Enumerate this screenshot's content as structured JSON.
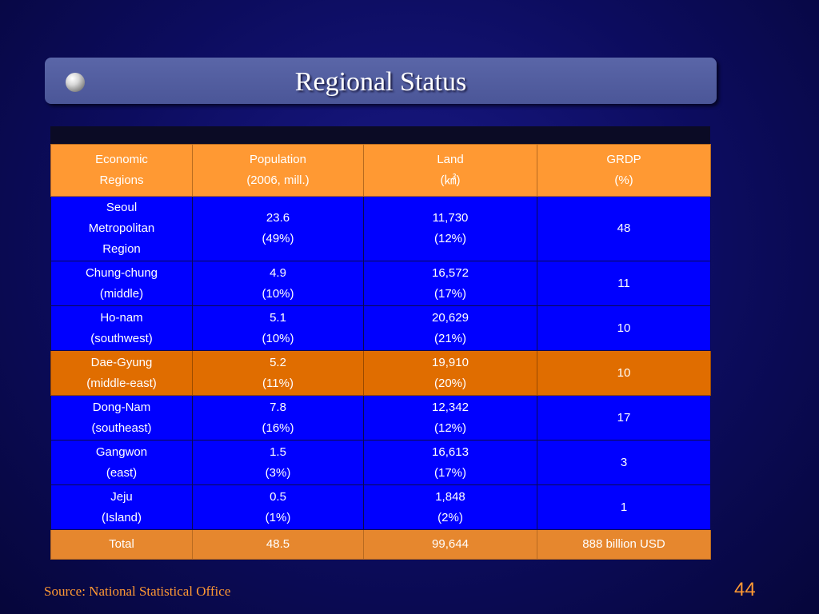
{
  "title": "Regional Status",
  "table": {
    "headers": [
      {
        "line1": "Economic",
        "line2": "Regions"
      },
      {
        "line1": "Population",
        "line2": "(2006, mill.)"
      },
      {
        "line1": "Land",
        "line2": "(㎢)"
      },
      {
        "line1": "GRDP",
        "line2": "(%)"
      }
    ],
    "rows": [
      {
        "region": [
          "Seoul",
          "Metropolitan",
          "Region"
        ],
        "population": [
          "23.6",
          "(49%)"
        ],
        "land": [
          "11,730",
          "(12%)"
        ],
        "grdp": "48"
      },
      {
        "region": [
          "Chung-chung",
          "(middle)"
        ],
        "population": [
          "4.9",
          "(10%)"
        ],
        "land": [
          "16,572",
          "(17%)"
        ],
        "grdp": "11"
      },
      {
        "region": [
          "Ho-nam",
          "(southwest)"
        ],
        "population": [
          "5.1",
          "(10%)"
        ],
        "land": [
          "20,629",
          "(21%)"
        ],
        "grdp": "10"
      },
      {
        "region": [
          "Dae-Gyung",
          "(middle-east)"
        ],
        "population": [
          "5.2",
          "(11%)"
        ],
        "land": [
          "19,910",
          "(20%)"
        ],
        "grdp": "10"
      },
      {
        "region": [
          "Dong-Nam",
          "(southeast)"
        ],
        "population": [
          "7.8",
          "(16%)"
        ],
        "land": [
          "12,342",
          "(12%)"
        ],
        "grdp": "17"
      },
      {
        "region": [
          "Gangwon",
          "(east)"
        ],
        "population": [
          "1.5",
          "(3%)"
        ],
        "land": [
          "16,613",
          "(17%)"
        ],
        "grdp": "3"
      },
      {
        "region": [
          "Jeju",
          "(Island)"
        ],
        "population": [
          "0.5",
          "(1%)"
        ],
        "land": [
          "1,848",
          "(2%)"
        ],
        "grdp": "1"
      }
    ],
    "total": {
      "label": "Total",
      "population": "48.5",
      "land": "99,644",
      "grdp": "888 billion USD"
    }
  },
  "source": "Source:  National Statistical Office",
  "page_number": "44"
}
